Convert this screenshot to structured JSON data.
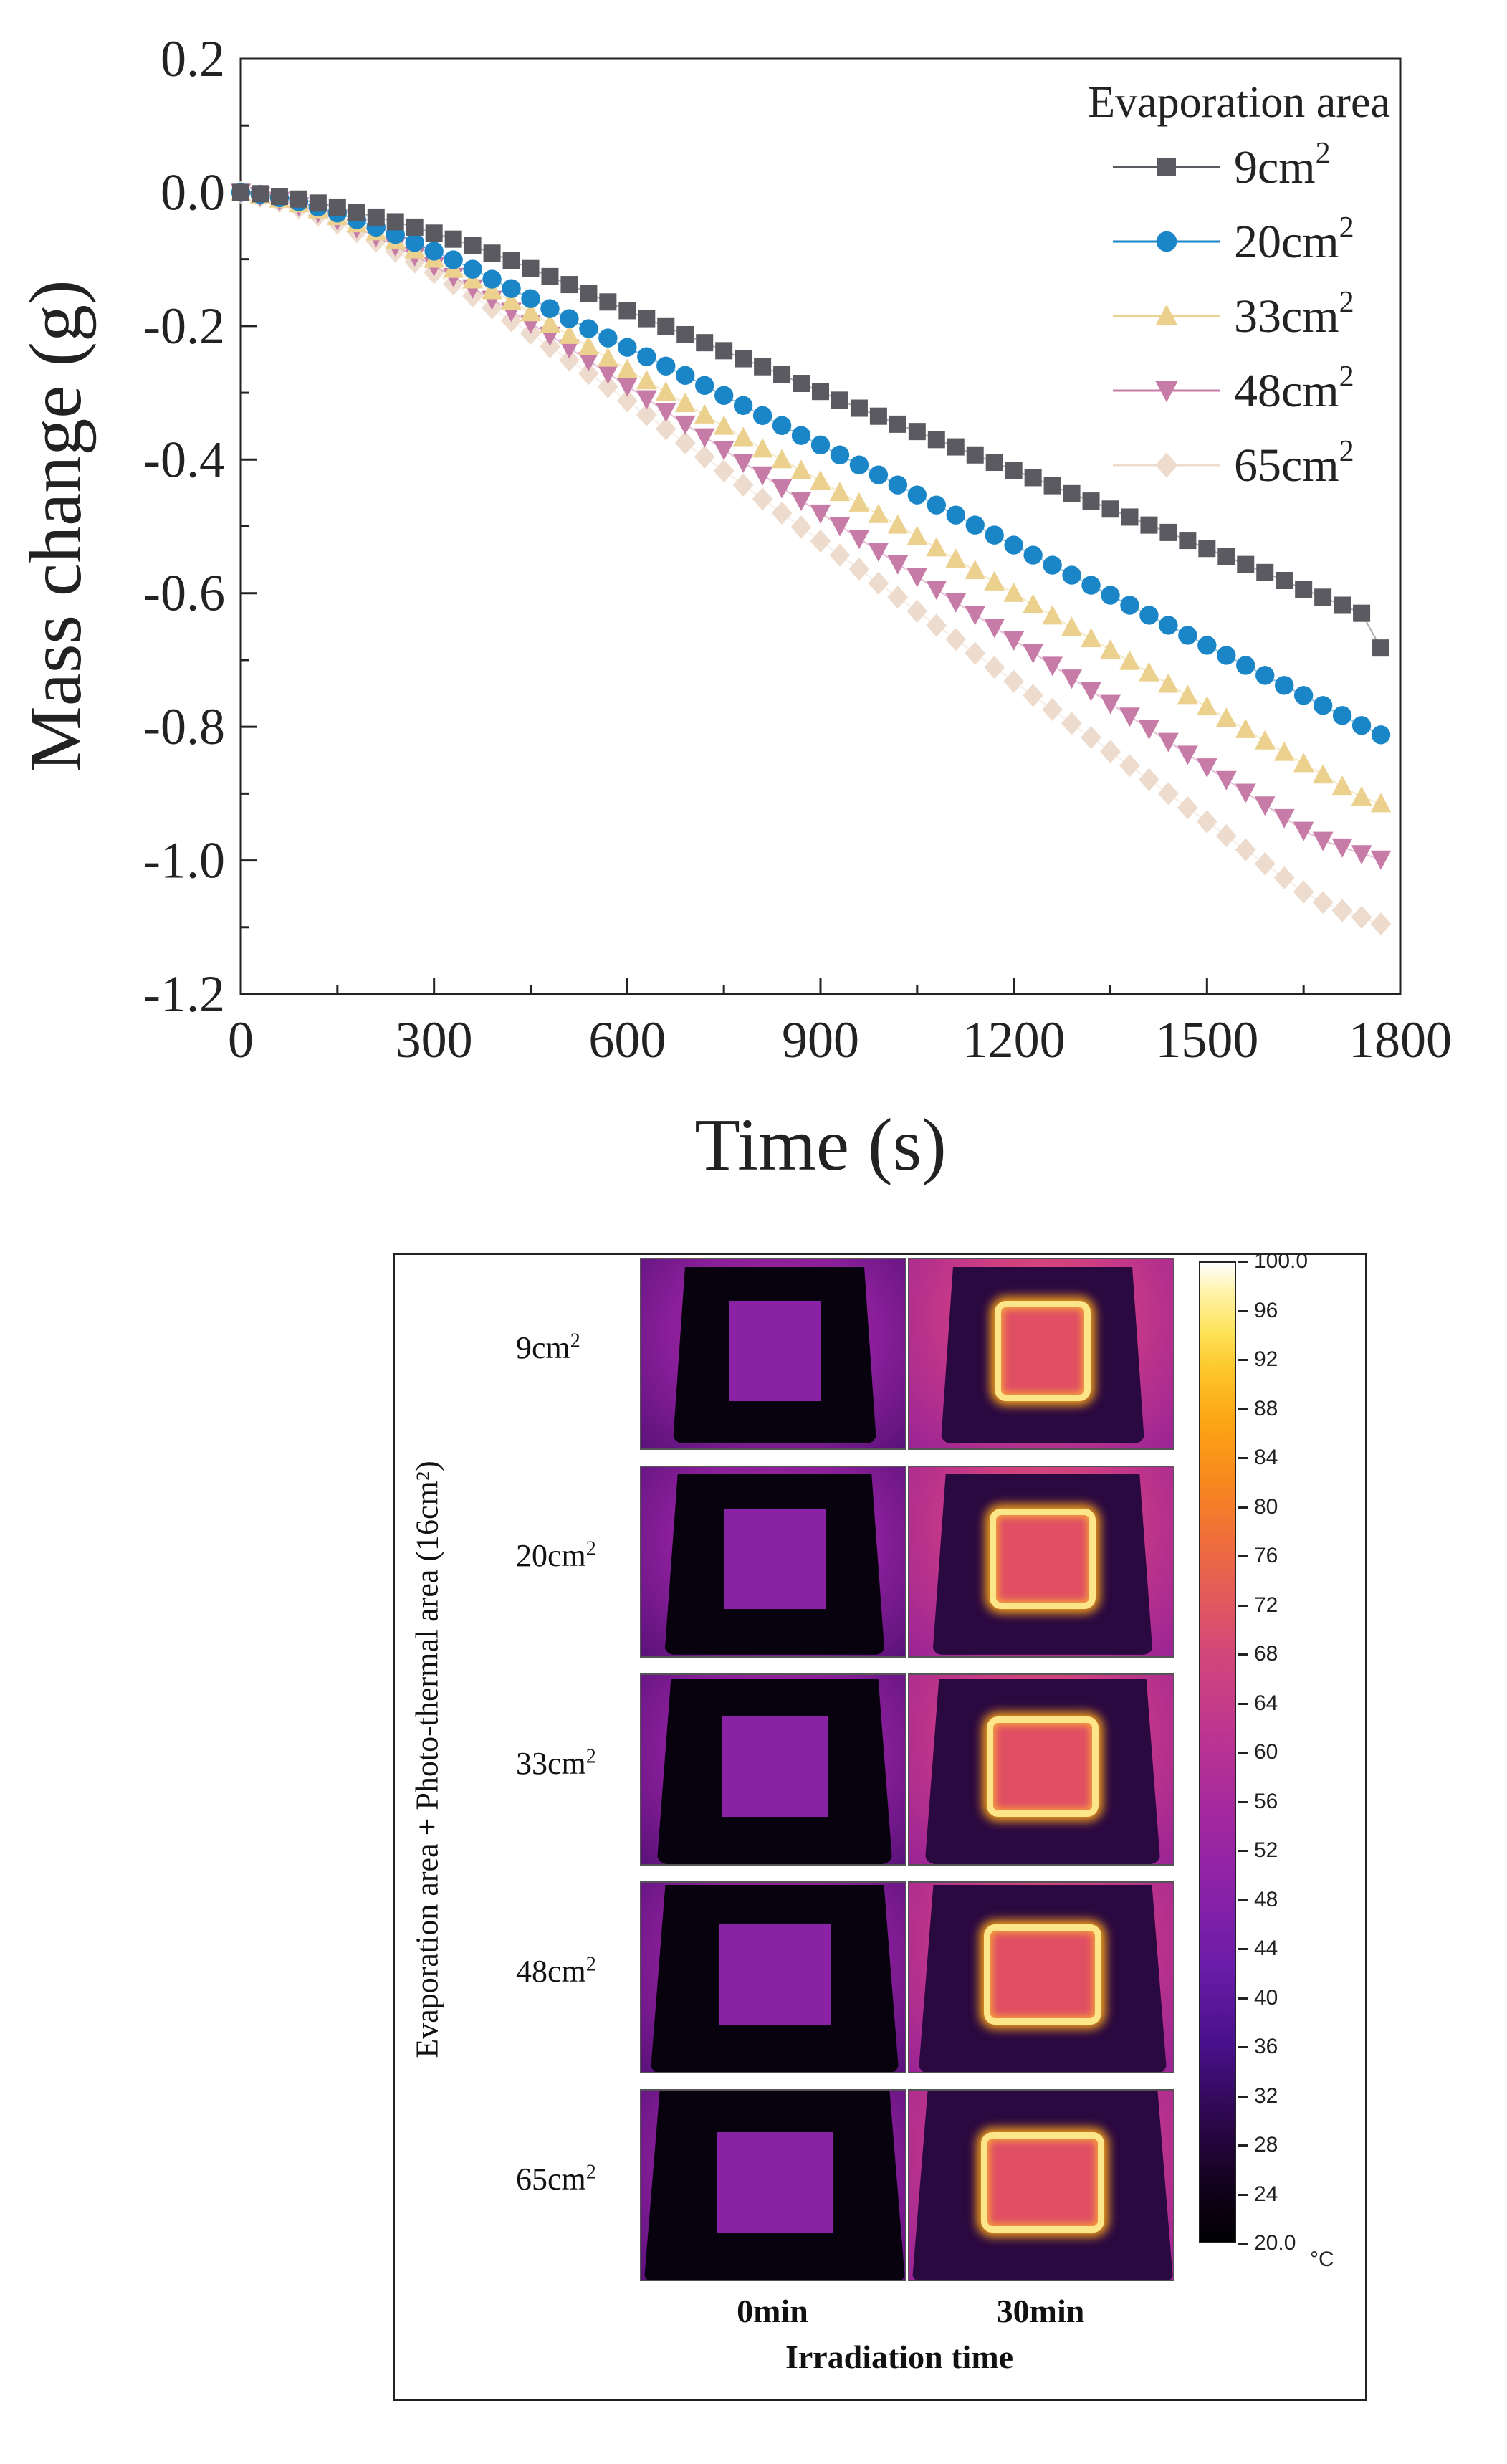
{
  "chart_data": {
    "type": "scatter",
    "title": "",
    "xlabel": "Time (s)",
    "ylabel": "Mass change (g)",
    "xlim": [
      0,
      1800
    ],
    "ylim": [
      -1.2,
      0.2
    ],
    "xticks": [
      0,
      300,
      600,
      900,
      1200,
      1500,
      1800
    ],
    "yticks": [
      0.2,
      0.0,
      -0.2,
      -0.4,
      -0.6,
      -0.8,
      -1.0,
      -1.2
    ],
    "ytick_labels": [
      "0.2",
      "0.0",
      "-0.2",
      "-0.4",
      "-0.6",
      "-0.8",
      "-1.0",
      "-1.2"
    ],
    "legend_title": "Evaporation area",
    "x": [
      0,
      30,
      60,
      90,
      120,
      150,
      180,
      210,
      240,
      270,
      300,
      330,
      360,
      390,
      420,
      450,
      480,
      510,
      540,
      570,
      600,
      630,
      660,
      690,
      720,
      750,
      780,
      810,
      840,
      870,
      900,
      930,
      960,
      990,
      1020,
      1050,
      1080,
      1110,
      1140,
      1170,
      1200,
      1230,
      1260,
      1290,
      1320,
      1350,
      1380,
      1410,
      1440,
      1470,
      1500,
      1530,
      1560,
      1590,
      1620,
      1650,
      1680,
      1710,
      1740,
      1770
    ],
    "series": [
      {
        "name": "9cm",
        "sup": "2",
        "marker": "square",
        "color": "#5a5a60",
        "values": [
          0.0,
          -0.002,
          -0.006,
          -0.01,
          -0.016,
          -0.022,
          -0.03,
          -0.037,
          -0.044,
          -0.052,
          -0.061,
          -0.07,
          -0.08,
          -0.091,
          -0.102,
          -0.114,
          -0.126,
          -0.138,
          -0.151,
          -0.164,
          -0.177,
          -0.189,
          -0.201,
          -0.213,
          -0.225,
          -0.237,
          -0.249,
          -0.261,
          -0.273,
          -0.286,
          -0.298,
          -0.311,
          -0.323,
          -0.335,
          -0.347,
          -0.358,
          -0.37,
          -0.381,
          -0.393,
          -0.404,
          -0.416,
          -0.427,
          -0.439,
          -0.451,
          -0.462,
          -0.474,
          -0.486,
          -0.498,
          -0.509,
          -0.521,
          -0.533,
          -0.545,
          -0.557,
          -0.569,
          -0.581,
          -0.594,
          -0.606,
          -0.618,
          -0.63,
          -0.682
        ]
      },
      {
        "name": "20cm",
        "sup": "2",
        "marker": "circle",
        "color": "#1a86c8",
        "values": [
          0.0,
          -0.003,
          -0.008,
          -0.014,
          -0.022,
          -0.031,
          -0.041,
          -0.052,
          -0.063,
          -0.075,
          -0.088,
          -0.101,
          -0.115,
          -0.13,
          -0.144,
          -0.159,
          -0.174,
          -0.189,
          -0.204,
          -0.218,
          -0.232,
          -0.246,
          -0.26,
          -0.274,
          -0.289,
          -0.304,
          -0.319,
          -0.334,
          -0.349,
          -0.364,
          -0.378,
          -0.393,
          -0.408,
          -0.423,
          -0.438,
          -0.453,
          -0.468,
          -0.483,
          -0.498,
          -0.513,
          -0.528,
          -0.543,
          -0.558,
          -0.573,
          -0.588,
          -0.603,
          -0.618,
          -0.633,
          -0.648,
          -0.663,
          -0.678,
          -0.693,
          -0.708,
          -0.723,
          -0.738,
          -0.753,
          -0.768,
          -0.783,
          -0.798,
          -0.812
        ]
      },
      {
        "name": "33cm",
        "sup": "2",
        "marker": "triangle-up",
        "color": "#ecd18e",
        "values": [
          0.0,
          -0.004,
          -0.01,
          -0.017,
          -0.026,
          -0.036,
          -0.047,
          -0.059,
          -0.072,
          -0.086,
          -0.1,
          -0.115,
          -0.131,
          -0.147,
          -0.163,
          -0.18,
          -0.197,
          -0.214,
          -0.231,
          -0.248,
          -0.265,
          -0.282,
          -0.299,
          -0.316,
          -0.333,
          -0.35,
          -0.367,
          -0.384,
          -0.4,
          -0.416,
          -0.432,
          -0.449,
          -0.465,
          -0.482,
          -0.498,
          -0.515,
          -0.532,
          -0.549,
          -0.566,
          -0.583,
          -0.6,
          -0.617,
          -0.634,
          -0.651,
          -0.668,
          -0.685,
          -0.702,
          -0.719,
          -0.736,
          -0.753,
          -0.77,
          -0.787,
          -0.804,
          -0.821,
          -0.838,
          -0.855,
          -0.872,
          -0.889,
          -0.905,
          -0.915
        ]
      },
      {
        "name": "48cm",
        "sup": "2",
        "marker": "triangle-down",
        "color": "#c77ca8",
        "values": [
          0.0,
          -0.005,
          -0.012,
          -0.02,
          -0.03,
          -0.041,
          -0.053,
          -0.066,
          -0.08,
          -0.095,
          -0.11,
          -0.126,
          -0.143,
          -0.16,
          -0.178,
          -0.196,
          -0.214,
          -0.233,
          -0.252,
          -0.271,
          -0.29,
          -0.309,
          -0.328,
          -0.347,
          -0.366,
          -0.385,
          -0.404,
          -0.423,
          -0.442,
          -0.461,
          -0.48,
          -0.499,
          -0.518,
          -0.537,
          -0.556,
          -0.575,
          -0.594,
          -0.613,
          -0.632,
          -0.651,
          -0.67,
          -0.689,
          -0.708,
          -0.727,
          -0.746,
          -0.765,
          -0.784,
          -0.803,
          -0.822,
          -0.841,
          -0.86,
          -0.879,
          -0.898,
          -0.917,
          -0.936,
          -0.955,
          -0.97,
          -0.98,
          -0.99,
          -0.998
        ]
      },
      {
        "name": "65cm",
        "sup": "2",
        "marker": "diamond",
        "color": "#eddccd",
        "values": [
          0.0,
          -0.006,
          -0.014,
          -0.023,
          -0.034,
          -0.046,
          -0.059,
          -0.073,
          -0.088,
          -0.104,
          -0.12,
          -0.137,
          -0.155,
          -0.173,
          -0.192,
          -0.211,
          -0.231,
          -0.251,
          -0.271,
          -0.291,
          -0.312,
          -0.333,
          -0.354,
          -0.375,
          -0.396,
          -0.417,
          -0.438,
          -0.459,
          -0.48,
          -0.501,
          -0.522,
          -0.543,
          -0.564,
          -0.585,
          -0.606,
          -0.627,
          -0.648,
          -0.669,
          -0.69,
          -0.711,
          -0.732,
          -0.753,
          -0.774,
          -0.795,
          -0.816,
          -0.837,
          -0.858,
          -0.879,
          -0.9,
          -0.921,
          -0.942,
          -0.963,
          -0.984,
          -1.005,
          -1.026,
          -1.047,
          -1.063,
          -1.075,
          -1.085,
          -1.095
        ]
      }
    ]
  },
  "thermal": {
    "side_title": "Evaporation area + Photo-thermal area (16cm²)",
    "rows": [
      {
        "label": "9cm",
        "sup": "2",
        "outer": 0.55,
        "inner": 0.36
      },
      {
        "label": "20cm",
        "sup": "2",
        "outer": 0.68,
        "inner": 0.4
      },
      {
        "label": "33cm",
        "sup": "2",
        "outer": 0.8,
        "inner": 0.42
      },
      {
        "label": "48cm",
        "sup": "2",
        "outer": 0.9,
        "inner": 0.44
      },
      {
        "label": "65cm",
        "sup": "2",
        "outer": 1.0,
        "inner": 0.46
      }
    ],
    "columns": [
      "0min",
      "30min"
    ],
    "x_title": "Irradiation time",
    "colorbar": {
      "max_label": "100.0",
      "min_label": "20.0",
      "min": 20,
      "max": 100,
      "ticks": [
        96,
        92,
        88,
        84,
        80,
        76,
        72,
        68,
        64,
        60,
        56,
        52,
        48,
        44,
        40,
        36,
        32,
        28,
        24
      ],
      "unit": "°C"
    }
  }
}
